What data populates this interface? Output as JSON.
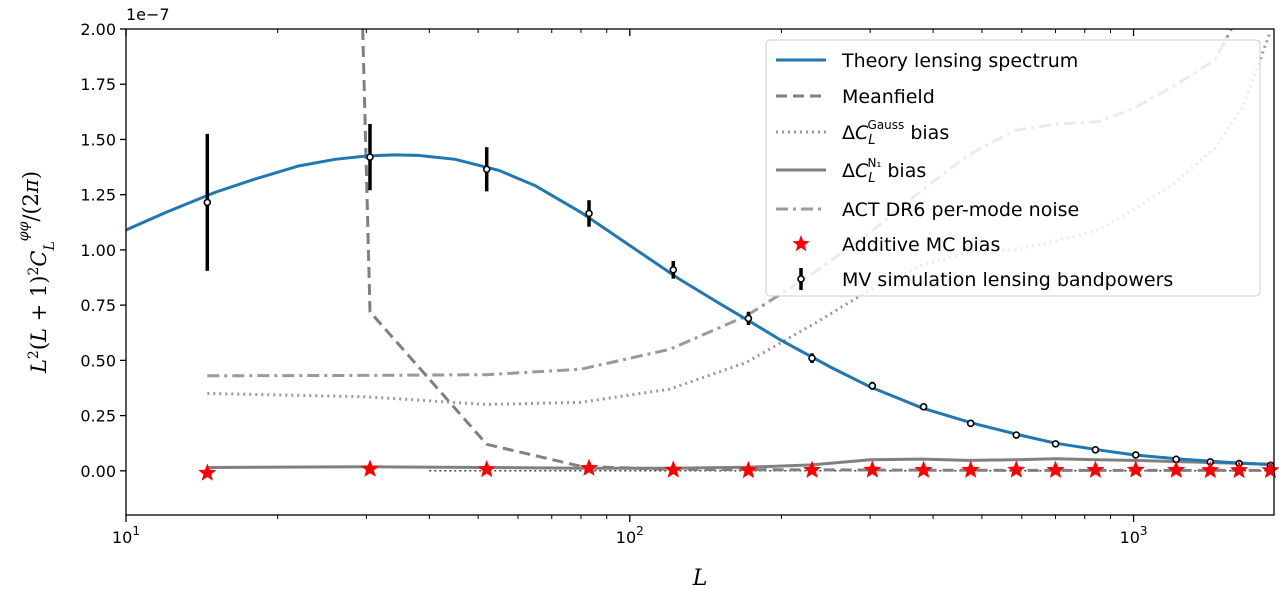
{
  "chart_data": {
    "type": "line",
    "xscale": "log",
    "xlim": [
      10,
      1900
    ],
    "ylim": [
      -0.2,
      2.0
    ],
    "y_multiplier": "1e−7",
    "xlabel": "L",
    "ylabel": "L²(L+1)²C_L^φφ/(2π)",
    "x_ticks": [
      {
        "value": 10,
        "base": "10",
        "exp": "1"
      },
      {
        "value": 100,
        "base": "10",
        "exp": "2"
      },
      {
        "value": 1000,
        "base": "10",
        "exp": "3"
      }
    ],
    "y_ticks": [
      {
        "value": 0.0,
        "label": "0.00"
      },
      {
        "value": 0.25,
        "label": "0.25"
      },
      {
        "value": 0.5,
        "label": "0.50"
      },
      {
        "value": 0.75,
        "label": "0.75"
      },
      {
        "value": 1.0,
        "label": "1.00"
      },
      {
        "value": 1.25,
        "label": "1.25"
      },
      {
        "value": 1.5,
        "label": "1.50"
      },
      {
        "value": 1.75,
        "label": "1.75"
      },
      {
        "value": 2.0,
        "label": "2.00"
      }
    ],
    "legend_position": "top-right",
    "series": [
      {
        "name": "Theory lensing spectrum",
        "style": "solid",
        "color": "#1f77b4",
        "x": [
          10,
          12,
          15,
          18,
          22,
          26,
          30,
          34,
          38,
          45,
          55,
          65,
          80,
          100,
          125,
          150,
          175,
          200,
          250,
          300,
          380,
          480,
          600,
          700,
          850,
          1000,
          1250,
          1500,
          1900
        ],
        "y": [
          1.09,
          1.17,
          1.26,
          1.32,
          1.38,
          1.41,
          1.425,
          1.43,
          1.428,
          1.41,
          1.36,
          1.29,
          1.17,
          1.02,
          0.87,
          0.76,
          0.67,
          0.59,
          0.47,
          0.38,
          0.285,
          0.215,
          0.16,
          0.125,
          0.095,
          0.072,
          0.052,
          0.04,
          0.027
        ]
      },
      {
        "name": "Meanfield",
        "style": "dashed",
        "color": "#808080",
        "x": [
          29.5,
          30.5,
          52,
          80,
          120,
          180,
          250,
          400,
          700,
          1200,
          1900
        ],
        "y": [
          2.0,
          0.72,
          0.12,
          0.02,
          0.007,
          0.005,
          0.004,
          0.003,
          0.002,
          0.002,
          0.002
        ]
      },
      {
        "name": "ΔC_L^Gauss bias",
        "style": "dotted",
        "color": "#808080",
        "x": [
          14.5,
          30,
          52,
          80,
          120,
          170,
          230,
          300,
          380,
          470,
          580,
          700,
          850,
          1000,
          1200,
          1450,
          1650,
          1870
        ],
        "y": [
          0.35,
          0.335,
          0.3,
          0.31,
          0.37,
          0.49,
          0.66,
          0.82,
          0.93,
          0.99,
          1.0,
          1.04,
          1.09,
          1.18,
          1.3,
          1.46,
          1.65,
          1.99
        ]
      },
      {
        "name": "ΔC_L^N₁ bias",
        "style": "solid",
        "color": "#808080",
        "x": [
          14.5,
          30,
          52,
          80,
          120,
          170,
          230,
          300,
          380,
          470,
          580,
          700,
          850,
          1000,
          1200,
          1450,
          1650,
          1900
        ],
        "y": [
          0.015,
          0.018,
          0.015,
          0.012,
          0.012,
          0.016,
          0.027,
          0.05,
          0.053,
          0.047,
          0.05,
          0.055,
          0.05,
          0.047,
          0.042,
          0.037,
          0.033,
          0.03
        ]
      },
      {
        "name": "ACT DR6 per-mode noise",
        "style": "dashdot",
        "color": "#808080",
        "x": [
          14.5,
          30,
          52,
          80,
          120,
          170,
          230,
          300,
          380,
          470,
          580,
          700,
          850,
          1000,
          1200,
          1450,
          1650,
          1900
        ],
        "y": [
          0.43,
          0.432,
          0.435,
          0.46,
          0.55,
          0.7,
          0.89,
          1.08,
          1.27,
          1.43,
          1.54,
          1.57,
          1.58,
          1.64,
          1.74,
          1.86,
          2.1,
          2.3
        ]
      },
      {
        "name": "Additive MC bias",
        "style": "star-markers",
        "color": "#ff0000",
        "x": [
          14.5,
          30.5,
          52,
          83,
          122,
          172,
          230,
          303,
          383,
          475,
          585,
          700,
          840,
          1010,
          1215,
          1420,
          1620,
          1870
        ],
        "y": [
          -0.01,
          0.008,
          0.006,
          0.012,
          0.004,
          0.002,
          0.003,
          0.004,
          0.003,
          0.003,
          0.004,
          0.003,
          0.003,
          0.004,
          0.003,
          0.002,
          0.002,
          0.002
        ]
      },
      {
        "name": "MV simulation lensing bandpowers",
        "style": "errorbar",
        "color": "#000000",
        "x": [
          14.5,
          30.5,
          52,
          83,
          122,
          172,
          230,
          303,
          383,
          475,
          585,
          700,
          840,
          1010,
          1215,
          1420,
          1620,
          1870
        ],
        "y": [
          1.215,
          1.42,
          1.365,
          1.165,
          0.91,
          0.69,
          0.51,
          0.385,
          0.29,
          0.215,
          0.162,
          0.122,
          0.095,
          0.072,
          0.052,
          0.04,
          0.033,
          0.025
        ],
        "err": [
          0.31,
          0.15,
          0.1,
          0.06,
          0.04,
          0.03,
          0.022,
          0.018,
          0.014,
          0.01,
          0.008,
          0.007,
          0.006,
          0.005,
          0.004,
          0.004,
          0.003,
          0.003
        ]
      }
    ],
    "reference_line": {
      "y": 0.0,
      "from_x": 40,
      "style": "dotted",
      "color": "#000000"
    }
  }
}
